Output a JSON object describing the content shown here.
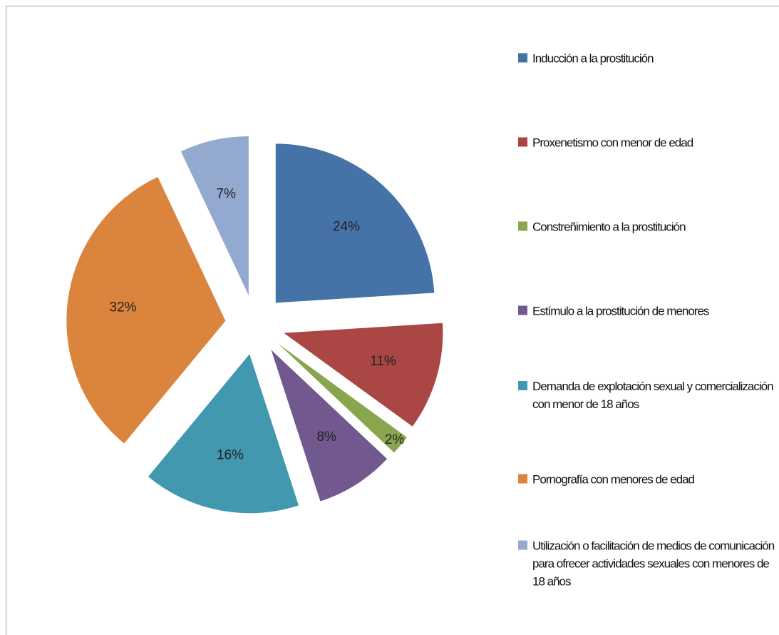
{
  "chart_data": {
    "type": "pie",
    "categories": [
      "Inducción a la prostitución",
      "Proxenetismo con menor de edad",
      "Constreñimiento a la prostitución",
      "Estímulo a la prostitución de menores",
      "Demanda de explotación sexual y comercialización con menor de 18 años",
      "Pornografía con menores de edad",
      "Utilización o facilitación de medios de comunicación para ofrecer actividades sexuales con menores de 18 años"
    ],
    "values": [
      24,
      11,
      2,
      8,
      16,
      32,
      7
    ],
    "value_labels": [
      "24%",
      "11%",
      "2%",
      "8%",
      "16%",
      "32%",
      "7%"
    ],
    "colors": [
      "#4572a7",
      "#aa4643",
      "#89a54e",
      "#71588f",
      "#4198af",
      "#db843d",
      "#93a9cf"
    ],
    "legend": "right"
  }
}
